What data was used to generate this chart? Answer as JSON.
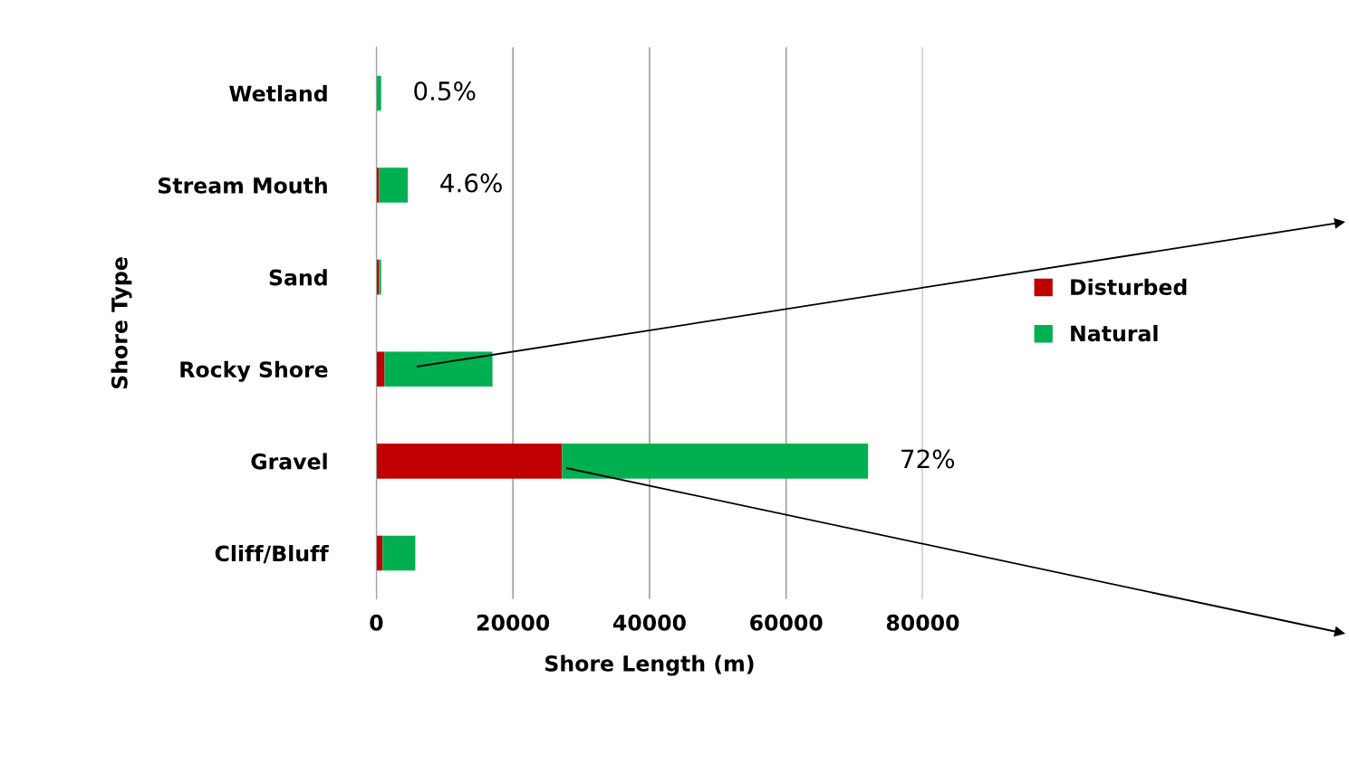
{
  "chart_data": {
    "type": "bar",
    "orientation": "horizontal",
    "stacked": true,
    "xlabel": "Shore Length (m)",
    "ylabel": "Shore Type",
    "categories": [
      "Wetland",
      "Stream Mouth",
      "Sand",
      "Rocky Shore",
      "Gravel",
      "Cliff/Bluff"
    ],
    "series": [
      {
        "name": "Disturbed",
        "color": "#c00000",
        "values": [
          0,
          400,
          400,
          1200,
          27200,
          900
        ]
      },
      {
        "name": "Natural",
        "color": "#00b050",
        "values": [
          700,
          4200,
          300,
          15800,
          44800,
          4800
        ]
      }
    ],
    "xlim": [
      0,
      80000
    ],
    "xticks": [
      0,
      20000,
      40000,
      60000,
      80000
    ],
    "grid": "x",
    "legend": "right",
    "annotations": [
      {
        "text": "0.5%",
        "x": 700,
        "y": "Wetland"
      },
      {
        "text": "4.6%",
        "x": 4600,
        "y": "Stream Mouth"
      },
      {
        "text": "72%",
        "x": 72000,
        "y": "Gravel"
      }
    ]
  }
}
